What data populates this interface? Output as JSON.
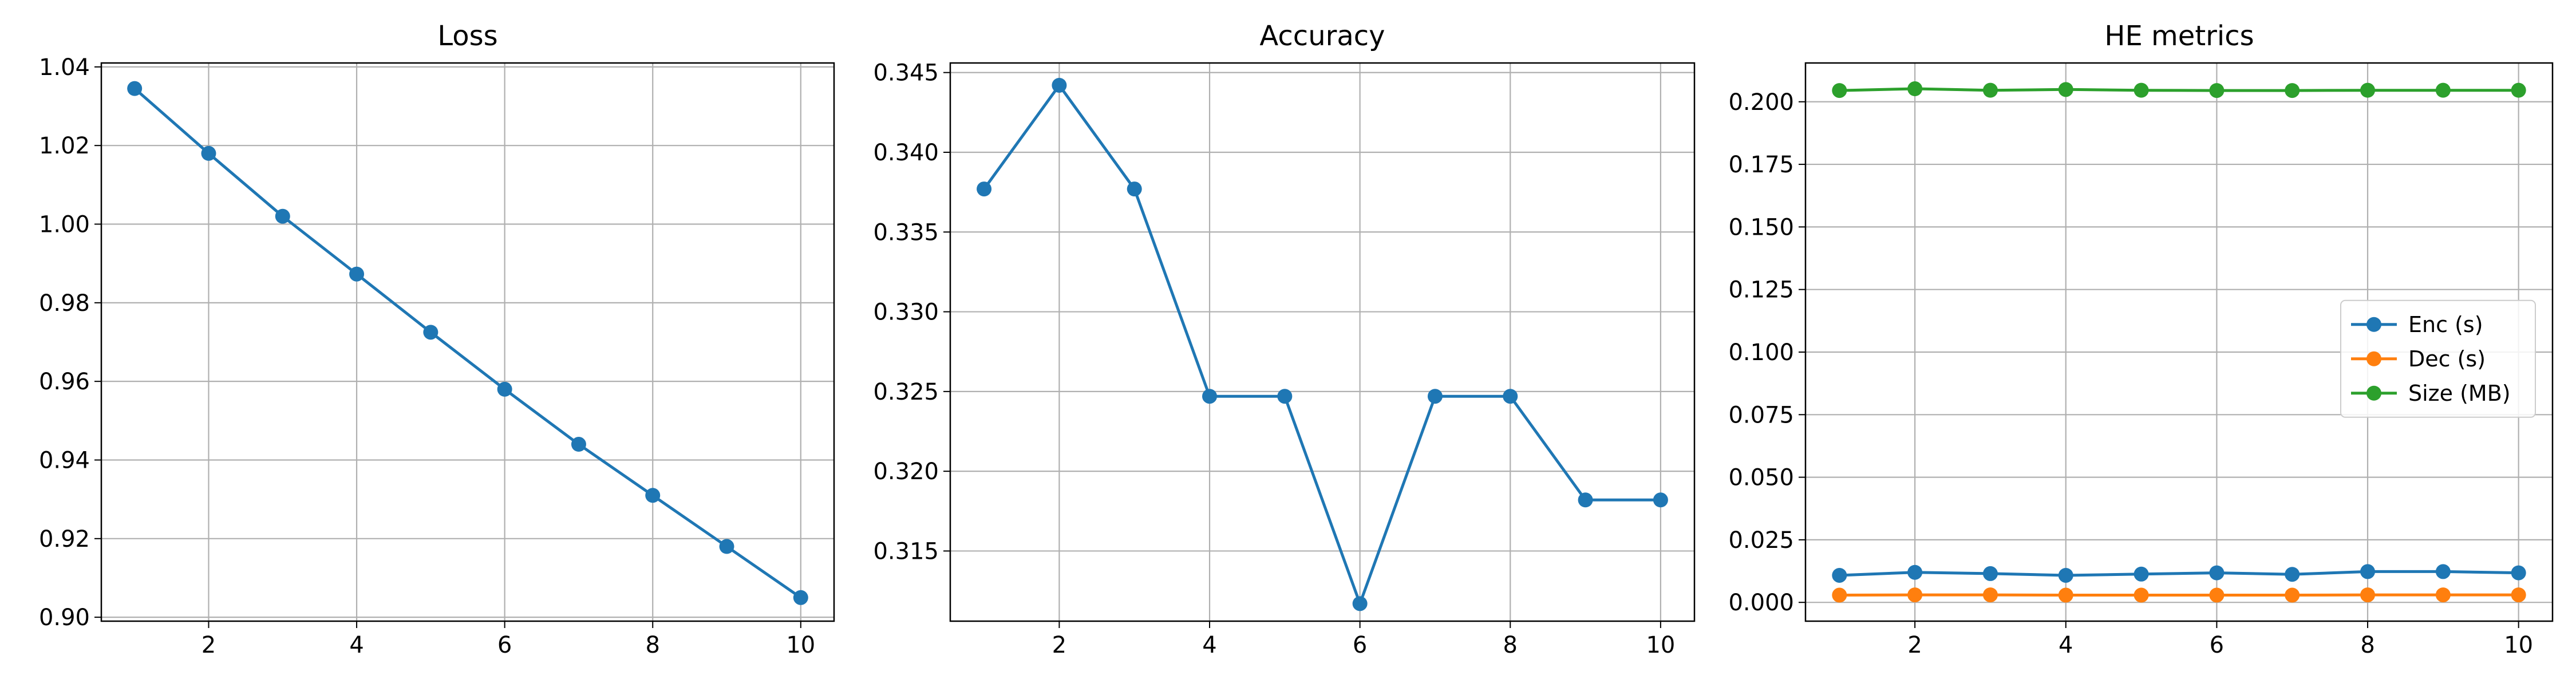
{
  "chart_data": [
    {
      "type": "line",
      "title": "Loss",
      "xlabel": "",
      "ylabel": "",
      "x": [
        1,
        2,
        3,
        4,
        5,
        6,
        7,
        8,
        9,
        10
      ],
      "xticks": [
        2,
        4,
        6,
        8,
        10
      ],
      "xlim": [
        0.55,
        10.45
      ],
      "ylim": [
        0.899,
        1.041
      ],
      "yticks": [
        0.9,
        0.92,
        0.94,
        0.96,
        0.98,
        1.0,
        1.02,
        1.04
      ],
      "ytick_decimals": 2,
      "grid": true,
      "series": [
        {
          "color": "#1f77b4",
          "values": [
            1.0345,
            1.018,
            1.002,
            0.9873,
            0.9725,
            0.958,
            0.944,
            0.931,
            0.918,
            0.905
          ]
        }
      ]
    },
    {
      "type": "line",
      "title": "Accuracy",
      "xlabel": "",
      "ylabel": "",
      "x": [
        1,
        2,
        3,
        4,
        5,
        6,
        7,
        8,
        9,
        10
      ],
      "xticks": [
        2,
        4,
        6,
        8,
        10
      ],
      "xlim": [
        0.55,
        10.45
      ],
      "ylim": [
        0.3106,
        0.3456
      ],
      "yticks": [
        0.315,
        0.32,
        0.325,
        0.33,
        0.335,
        0.34,
        0.345
      ],
      "ytick_decimals": 3,
      "grid": true,
      "series": [
        {
          "color": "#1f77b4",
          "values": [
            0.3377,
            0.3442,
            0.3377,
            0.3247,
            0.3247,
            0.3117,
            0.3247,
            0.3247,
            0.3182,
            0.3182
          ]
        }
      ]
    },
    {
      "type": "line",
      "title": "HE metrics",
      "xlabel": "",
      "ylabel": "",
      "x": [
        1,
        2,
        3,
        4,
        5,
        6,
        7,
        8,
        9,
        10
      ],
      "xticks": [
        2,
        4,
        6,
        8,
        10
      ],
      "xlim": [
        0.55,
        10.45
      ],
      "ylim": [
        -0.0075,
        0.2155
      ],
      "yticks": [
        0.0,
        0.025,
        0.05,
        0.075,
        0.1,
        0.125,
        0.15,
        0.175,
        0.2
      ],
      "ytick_decimals": 3,
      "grid": true,
      "legend_position": "center-right",
      "series": [
        {
          "name": "Enc (s)",
          "color": "#1f77b4",
          "values": [
            0.0108,
            0.012,
            0.0115,
            0.0108,
            0.0113,
            0.0118,
            0.0112,
            0.0123,
            0.0123,
            0.0118
          ]
        },
        {
          "name": "Dec (s)",
          "color": "#ff7f0e",
          "values": [
            0.0029,
            0.003,
            0.003,
            0.0029,
            0.0029,
            0.0029,
            0.0029,
            0.003,
            0.003,
            0.003
          ]
        },
        {
          "name": "Size (MB)",
          "color": "#2ca02c",
          "values": [
            0.2045,
            0.2052,
            0.2046,
            0.2049,
            0.2046,
            0.2045,
            0.2045,
            0.2046,
            0.2046,
            0.2046
          ]
        }
      ]
    }
  ]
}
